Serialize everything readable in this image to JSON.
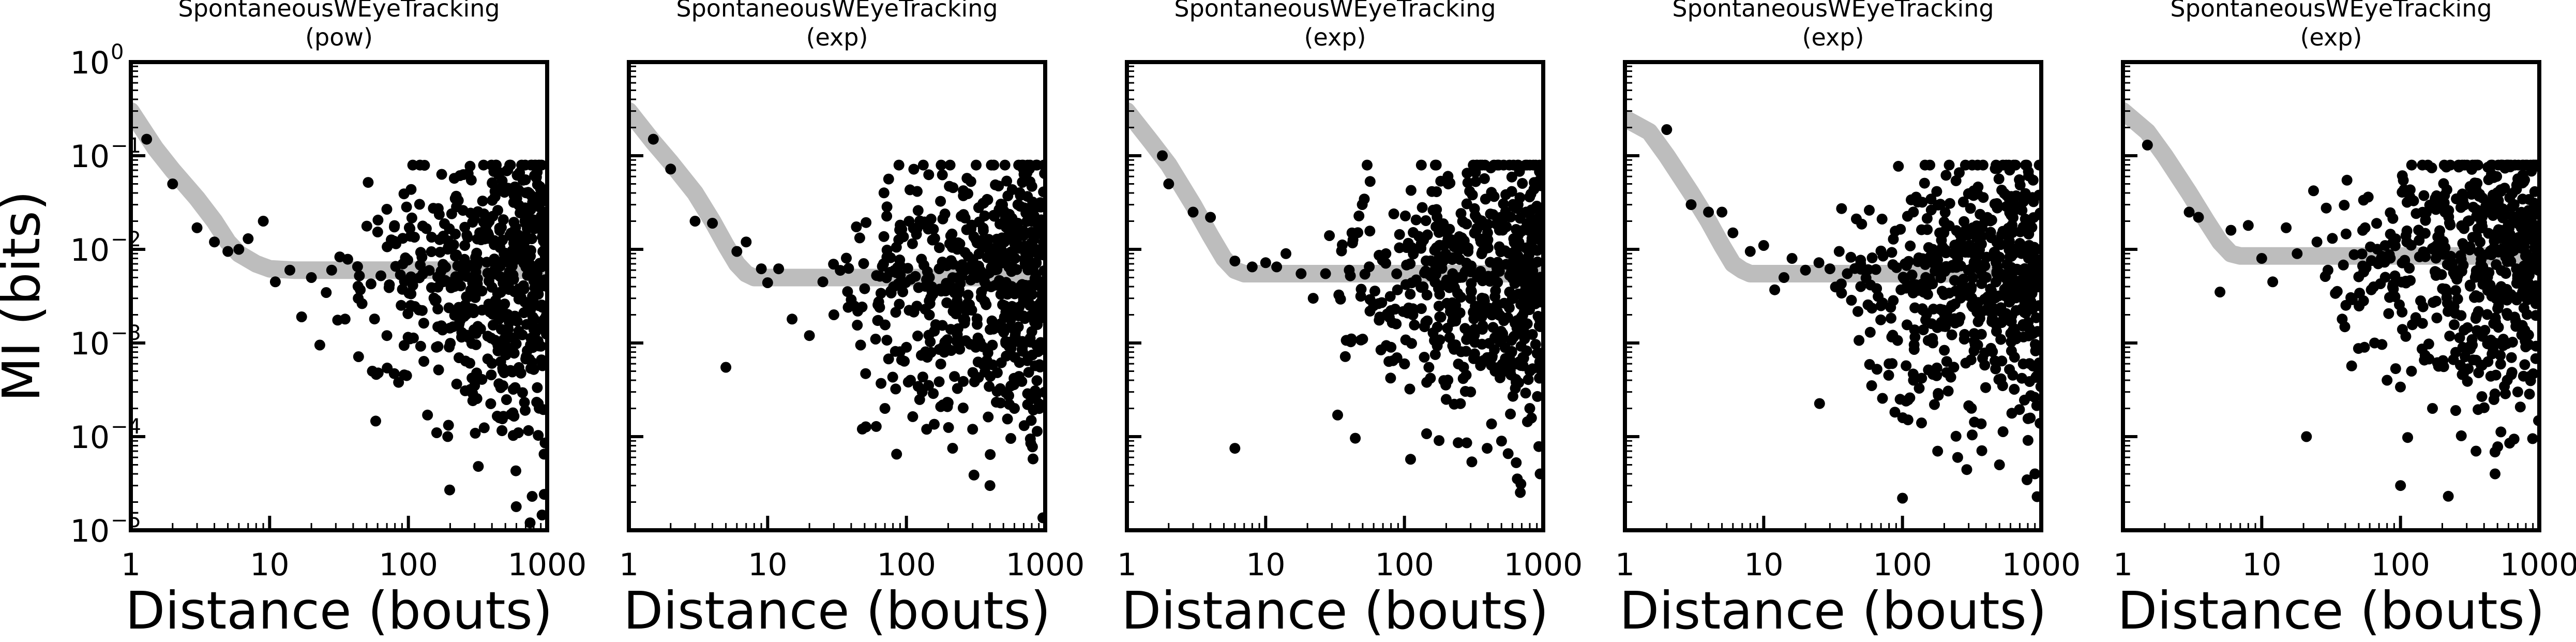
{
  "chart_data": [
    {
      "type": "scatter",
      "title": "SpontaneousWEyeTracking",
      "subtitle": "(pow)",
      "xlabel": "Distance (bouts)",
      "ylabel": "MI (bits)",
      "xscale": "log",
      "yscale": "log",
      "xlim": [
        1,
        1000
      ],
      "ylim": [
        1e-05,
        1
      ],
      "xticks": [
        1,
        10,
        100,
        1000
      ],
      "xtick_labels": [
        "1",
        "10",
        "100",
        "1000"
      ],
      "yticks": [
        1e-05,
        0.0001,
        0.001,
        0.01,
        0.1,
        1
      ],
      "ytick_labels": [
        "10",
        "10",
        "10",
        "10",
        "10",
        "10"
      ],
      "ytick_exponents": [
        "−5",
        "−4",
        "−3",
        "−2",
        "−1",
        "0"
      ],
      "fit": {
        "floor": 0.006,
        "bump": 0,
        "knee": 8,
        "x": [
          1,
          1.5,
          2,
          3,
          4,
          5,
          6,
          8,
          10,
          15,
          20,
          50,
          100,
          1000
        ],
        "y": [
          0.3,
          0.12,
          0.07,
          0.035,
          0.02,
          0.012,
          0.009,
          0.007,
          0.0062,
          0.006,
          0.006,
          0.006,
          0.006,
          0.006
        ]
      },
      "points_high": [
        [
          1.3,
          0.15
        ],
        [
          2,
          0.05
        ],
        [
          3,
          0.017
        ],
        [
          4,
          0.012
        ],
        [
          5,
          0.0095
        ],
        [
          6,
          0.01
        ],
        [
          7,
          0.013
        ],
        [
          9,
          0.02
        ],
        [
          11,
          0.0045
        ],
        [
          14,
          0.006
        ],
        [
          17,
          0.0019
        ],
        [
          20,
          0.005
        ],
        [
          23,
          0.00095
        ],
        [
          28,
          0.006
        ],
        [
          35,
          0.0018
        ],
        [
          45,
          0.0037
        ],
        [
          55,
          0.0005
        ],
        [
          70,
          0.0012
        ],
        [
          85,
          0.00038
        ],
        [
          160,
          0.00011
        ],
        [
          300,
          0.00035
        ],
        [
          480,
          0.00035
        ],
        [
          620,
          0.00011
        ],
        [
          780,
          2.3e-05
        ],
        [
          950,
          6.5e-05
        ]
      ],
      "points_cloud": {
        "count": 560,
        "seed": 11,
        "floor": 0.006,
        "bump": 0
      }
    },
    {
      "type": "scatter",
      "title": "SpontaneousWEyeTracking",
      "subtitle": "(exp)",
      "xlabel": "Distance (bouts)",
      "ylabel": "",
      "xscale": "log",
      "yscale": "log",
      "xlim": [
        1,
        1000
      ],
      "ylim": [
        1e-05,
        1
      ],
      "xticks": [
        1,
        10,
        100,
        1000
      ],
      "xtick_labels": [
        "1",
        "10",
        "100",
        "1000"
      ],
      "fit": {
        "x": [
          1,
          1.5,
          2,
          3,
          4,
          5,
          6,
          7,
          8,
          10,
          15,
          20,
          50,
          100,
          1000
        ],
        "y": [
          0.3,
          0.14,
          0.085,
          0.04,
          0.02,
          0.011,
          0.007,
          0.0055,
          0.005,
          0.005,
          0.005,
          0.005,
          0.005,
          0.005,
          0.005
        ]
      },
      "points_high": [
        [
          1.5,
          0.15
        ],
        [
          2,
          0.072
        ],
        [
          3,
          0.02
        ],
        [
          4,
          0.019
        ],
        [
          6,
          0.0095
        ],
        [
          7,
          0.012
        ],
        [
          9,
          0.0062
        ],
        [
          10,
          0.0044
        ],
        [
          12,
          0.0062
        ],
        [
          15,
          0.0018
        ],
        [
          20,
          0.0012
        ],
        [
          25,
          0.0045
        ],
        [
          30,
          0.002
        ],
        [
          40,
          0.0029
        ],
        [
          50,
          0.0038
        ],
        [
          60,
          0.0011
        ],
        [
          70,
          0.0002
        ],
        [
          85,
          6.5e-05
        ],
        [
          100,
          0.0009
        ],
        [
          130,
          0.0003
        ],
        [
          200,
          0.00023
        ],
        [
          300,
          0.00012
        ],
        [
          400,
          3e-05
        ],
        [
          600,
          0.0002
        ],
        [
          5,
          0.00055
        ]
      ],
      "points_cloud": {
        "count": 560,
        "seed": 23,
        "floor": 0.005,
        "bump": 0
      }
    },
    {
      "type": "scatter",
      "title": "SpontaneousWEyeTracking",
      "subtitle": "(exp)",
      "xlabel": "Distance (bouts)",
      "ylabel": "",
      "xscale": "log",
      "yscale": "log",
      "xlim": [
        1,
        1000
      ],
      "ylim": [
        1e-05,
        1
      ],
      "xticks": [
        1,
        10,
        100,
        1000
      ],
      "xtick_labels": [
        "1",
        "10",
        "100",
        "1000"
      ],
      "fit": {
        "x": [
          1,
          1.5,
          2,
          3,
          4,
          5,
          6,
          7,
          8,
          10,
          15,
          20,
          50,
          100,
          1000
        ],
        "y": [
          0.3,
          0.14,
          0.08,
          0.03,
          0.014,
          0.008,
          0.006,
          0.0055,
          0.0055,
          0.0055,
          0.0055,
          0.0055,
          0.0055,
          0.0055,
          0.0055
        ]
      },
      "points_high": [
        [
          1.8,
          0.1
        ],
        [
          2,
          0.05
        ],
        [
          3,
          0.025
        ],
        [
          4,
          0.022
        ],
        [
          6,
          0.0075
        ],
        [
          6,
          7.5e-05
        ],
        [
          8,
          0.0065
        ],
        [
          10,
          0.0072
        ],
        [
          12,
          0.0065
        ],
        [
          14,
          0.009
        ],
        [
          18,
          0.0055
        ],
        [
          22,
          0.003
        ],
        [
          27,
          0.0055
        ],
        [
          33,
          0.00017
        ],
        [
          40,
          0.006
        ],
        [
          50,
          0.0011
        ],
        [
          60,
          0.0025
        ],
        [
          80,
          0.0009
        ],
        [
          100,
          0.0006
        ],
        [
          150,
          0.00055
        ],
        [
          200,
          0.00025
        ],
        [
          300,
          0.0003
        ],
        [
          450,
          0.0005
        ],
        [
          800,
          0.0002
        ],
        [
          950,
          4e-05
        ]
      ],
      "points_cloud": {
        "count": 560,
        "seed": 37,
        "floor": 0.0055,
        "bump": 0
      }
    },
    {
      "type": "scatter",
      "title": "SpontaneousWEyeTracking",
      "subtitle": "(exp)",
      "xlabel": "Distance (bouts)",
      "ylabel": "",
      "xscale": "log",
      "yscale": "log",
      "xlim": [
        1,
        1000
      ],
      "ylim": [
        1e-05,
        1
      ],
      "xticks": [
        1,
        10,
        100,
        1000
      ],
      "xtick_labels": [
        "1",
        "10",
        "100",
        "1000"
      ],
      "fit": {
        "x": [
          1,
          1.5,
          2,
          3,
          4,
          5,
          6,
          7,
          8,
          10,
          15,
          20,
          50,
          100,
          1000
        ],
        "y": [
          0.25,
          0.18,
          0.1,
          0.04,
          0.02,
          0.011,
          0.007,
          0.006,
          0.0055,
          0.0055,
          0.0055,
          0.0055,
          0.0055,
          0.0055,
          0.0055
        ]
      },
      "points_high": [
        [
          2,
          0.19
        ],
        [
          3,
          0.03
        ],
        [
          4,
          0.025
        ],
        [
          5,
          0.025
        ],
        [
          6,
          0.015
        ],
        [
          8,
          0.0095
        ],
        [
          10,
          0.011
        ],
        [
          12,
          0.0037
        ],
        [
          14,
          0.005
        ],
        [
          16,
          0.008
        ],
        [
          20,
          0.006
        ],
        [
          25,
          0.0072
        ],
        [
          30,
          0.0062
        ],
        [
          35,
          0.0095
        ],
        [
          40,
          0.0055
        ],
        [
          50,
          0.004
        ],
        [
          60,
          0.00035
        ],
        [
          70,
          0.0025
        ],
        [
          80,
          0.0006
        ],
        [
          100,
          2.2e-05
        ],
        [
          120,
          0.0004
        ],
        [
          170,
          0.00022
        ],
        [
          250,
          6e-05
        ],
        [
          500,
          5e-05
        ],
        [
          900,
          4e-05
        ]
      ],
      "points_cloud": {
        "count": 560,
        "seed": 53,
        "floor": 0.0055,
        "bump": 0
      }
    },
    {
      "type": "scatter",
      "title": "SpontaneousWEyeTracking",
      "subtitle": "(exp)",
      "xlabel": "Distance (bouts)",
      "ylabel": "",
      "xscale": "log",
      "yscale": "log",
      "xlim": [
        1,
        1000
      ],
      "ylim": [
        1e-05,
        1
      ],
      "xticks": [
        1,
        10,
        100,
        1000
      ],
      "xtick_labels": [
        "1",
        "10",
        "100",
        "1000"
      ],
      "fit": {
        "x": [
          1,
          1.5,
          2,
          3,
          4,
          5,
          6,
          7,
          8,
          10,
          15,
          20,
          50,
          100,
          1000
        ],
        "y": [
          0.3,
          0.18,
          0.1,
          0.04,
          0.02,
          0.012,
          0.009,
          0.0085,
          0.0085,
          0.0085,
          0.0085,
          0.0085,
          0.0085,
          0.0085,
          0.0085
        ]
      },
      "points_high": [
        [
          1.5,
          0.13
        ],
        [
          3,
          0.025
        ],
        [
          3.5,
          0.022
        ],
        [
          5,
          0.0035
        ],
        [
          6,
          0.016
        ],
        [
          8,
          0.018
        ],
        [
          10,
          0.008
        ],
        [
          12,
          0.0045
        ],
        [
          15,
          0.017
        ],
        [
          18,
          0.009
        ],
        [
          21,
          0.0001
        ],
        [
          25,
          0.012
        ],
        [
          30,
          0.006
        ],
        [
          38,
          0.0018
        ],
        [
          45,
          0.0029
        ],
        [
          55,
          0.0009
        ],
        [
          65,
          0.001
        ],
        [
          80,
          0.0004
        ],
        [
          100,
          3e-05
        ],
        [
          120,
          0.0005
        ],
        [
          170,
          0.0002
        ],
        [
          250,
          0.00019
        ],
        [
          350,
          7e-05
        ],
        [
          480,
          4e-05
        ],
        [
          700,
          0.0003
        ]
      ],
      "points_cloud": {
        "count": 560,
        "seed": 71,
        "floor": 0.0085,
        "bump": 0
      }
    }
  ]
}
